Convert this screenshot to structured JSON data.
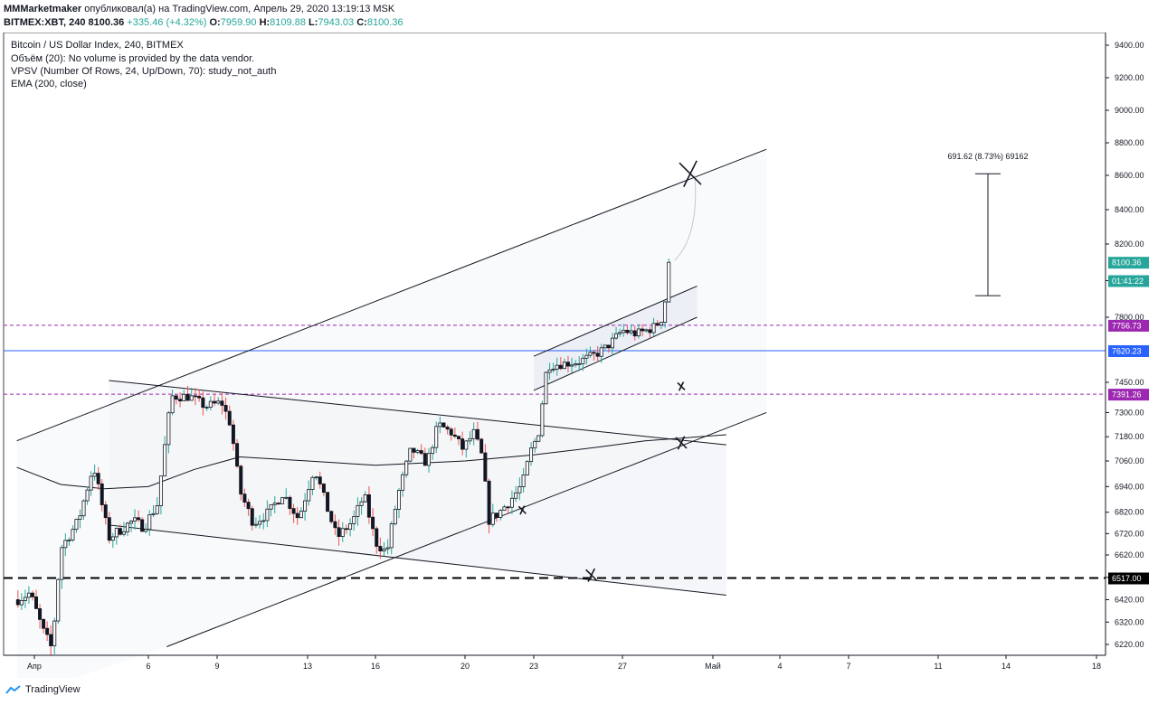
{
  "header": {
    "author": "MMMarketmaker",
    "published_text": "опубликовал(а) на TradingView.com, Апрель 29, 2020 13:19:13 MSK",
    "symbol": "BITMEX:XBT, 240",
    "last": "8100.36",
    "change": "+335.46 (+4.32%)",
    "o_label": "O:",
    "o": "7959.90",
    "h_label": "H:",
    "h": "8109.88",
    "l_label": "L:",
    "l": "7943.03",
    "c_label": "C:",
    "c": "8100.36"
  },
  "legend": [
    "Bitcoin / US Dollar Index, 240, BITMEX",
    "Объём (20): No volume is provided by the data vendor.",
    "VPSV (Number Of Rows, 24, Up/Down, 70): study_not_auth",
    "EMA (200, close)"
  ],
  "footer": {
    "brand": "TradingView"
  },
  "colors": {
    "up": "#26a69a",
    "down": "#ef5350",
    "candle_body": "#131722",
    "blue_line": "#2962ff",
    "magenta": "#9c27b0"
  },
  "chart_data": {
    "type": "candlestick",
    "title": "Bitcoin / US Dollar Index, 240, BITMEX",
    "ylim": [
      6160,
      9520
    ],
    "yticks": [
      6220,
      6320,
      6420,
      6520,
      6620,
      6720,
      6820,
      6940,
      7060,
      7180,
      7300,
      7450,
      7800,
      8000,
      8200,
      8400,
      8600,
      8800,
      9000,
      9200,
      9400
    ],
    "y_tick_labels": [
      "6220.00",
      "6320.00",
      "6420.00",
      "",
      "6620.00",
      "6720.00",
      "6820.00",
      "6940.00",
      "7060.00",
      "7180.00",
      "7300.00",
      "7450.00",
      "7800.00",
      "",
      "8200.00",
      "8400.00",
      "8600.00",
      "8800.00",
      "9000.00",
      "9200.00",
      "9400.00"
    ],
    "x_tick_labels": [
      {
        "label": "Апр",
        "day": 1
      },
      {
        "label": "6",
        "day": 6
      },
      {
        "label": "9",
        "day": 9
      },
      {
        "label": "13",
        "day": 13
      },
      {
        "label": "16",
        "day": 16
      },
      {
        "label": "20",
        "day": 20
      },
      {
        "label": "23",
        "day": 23
      },
      {
        "label": "27",
        "day": 27
      },
      {
        "label": "Май",
        "day": 31
      },
      {
        "label": "4",
        "day": 35
      },
      {
        "label": "7",
        "day": 38
      },
      {
        "label": "11",
        "day": 42
      },
      {
        "label": "14",
        "day": 45
      },
      {
        "label": "18",
        "day": 49
      }
    ],
    "price_labels": [
      {
        "value": 8100.36,
        "text": "8100.36",
        "color": "#26a69a"
      },
      {
        "value": 8000,
        "text": "01:41:22",
        "color": "#26a69a"
      },
      {
        "value": 7756.73,
        "text": "7756.73",
        "color": "#9c27b0"
      },
      {
        "value": 7620.23,
        "text": "7620.23",
        "color": "#2962ff"
      },
      {
        "value": 7391.26,
        "text": "7391.26",
        "color": "#9c27b0"
      },
      {
        "value": 6517.0,
        "text": "6517.00",
        "color": "#000000"
      }
    ],
    "horizontal_lines": [
      {
        "value": 7756.73,
        "style": "dashed",
        "color": "#9c27b0"
      },
      {
        "value": 7620.23,
        "style": "solid",
        "color": "#2962ff"
      },
      {
        "value": 7391.26,
        "style": "dashed",
        "color": "#9c27b0"
      },
      {
        "value": 6517.0,
        "style": "dashed-thick",
        "color": "#000000"
      }
    ],
    "measure": {
      "text": "691.62 (8.73%) 69162",
      "from": 7918,
      "to": 8610,
      "day": 44.2
    },
    "pivots": [
      {
        "day": 0.0,
        "value": 6420
      },
      {
        "day": 0.6,
        "value": 6450
      },
      {
        "day": 1.2,
        "value": 6280
      },
      {
        "day": 1.6,
        "value": 6200
      },
      {
        "day": 2.0,
        "value": 6650
      },
      {
        "day": 2.8,
        "value": 6780
      },
      {
        "day": 3.5,
        "value": 7040
      },
      {
        "day": 4.2,
        "value": 6700
      },
      {
        "day": 5.3,
        "value": 6780
      },
      {
        "day": 5.8,
        "value": 6750
      },
      {
        "day": 6.4,
        "value": 6860
      },
      {
        "day": 7.0,
        "value": 7380
      },
      {
        "day": 7.8,
        "value": 7380
      },
      {
        "day": 8.5,
        "value": 7330
      },
      {
        "day": 9.2,
        "value": 7350
      },
      {
        "day": 9.6,
        "value": 7240
      },
      {
        "day": 10.0,
        "value": 6920
      },
      {
        "day": 10.6,
        "value": 6770
      },
      {
        "day": 11.3,
        "value": 6820
      },
      {
        "day": 11.9,
        "value": 6910
      },
      {
        "day": 12.6,
        "value": 6790
      },
      {
        "day": 13.3,
        "value": 7030
      },
      {
        "day": 13.8,
        "value": 6860
      },
      {
        "day": 14.3,
        "value": 6700
      },
      {
        "day": 15.0,
        "value": 6780
      },
      {
        "day": 15.5,
        "value": 6900
      },
      {
        "day": 16.0,
        "value": 6680
      },
      {
        "day": 16.5,
        "value": 6630
      },
      {
        "day": 17.0,
        "value": 6900
      },
      {
        "day": 17.6,
        "value": 7120
      },
      {
        "day": 18.3,
        "value": 7050
      },
      {
        "day": 18.8,
        "value": 7240
      },
      {
        "day": 19.4,
        "value": 7200
      },
      {
        "day": 19.9,
        "value": 7120
      },
      {
        "day": 20.4,
        "value": 7200
      },
      {
        "day": 20.8,
        "value": 7060
      },
      {
        "day": 21.0,
        "value": 6780
      },
      {
        "day": 21.5,
        "value": 6820
      },
      {
        "day": 22.0,
        "value": 6880
      },
      {
        "day": 22.5,
        "value": 6950
      },
      {
        "day": 22.9,
        "value": 7120
      },
      {
        "day": 23.2,
        "value": 7190
      },
      {
        "day": 23.6,
        "value": 7540
      },
      {
        "day": 24.3,
        "value": 7550
      },
      {
        "day": 25.0,
        "value": 7560
      },
      {
        "day": 25.8,
        "value": 7600
      },
      {
        "day": 26.3,
        "value": 7640
      },
      {
        "day": 27.0,
        "value": 7730
      },
      {
        "day": 27.6,
        "value": 7710
      },
      {
        "day": 28.3,
        "value": 7740
      },
      {
        "day": 28.7,
        "value": 7780
      },
      {
        "day": 29.0,
        "value": 7960
      },
      {
        "day": 29.2,
        "value": 8100
      }
    ]
  }
}
